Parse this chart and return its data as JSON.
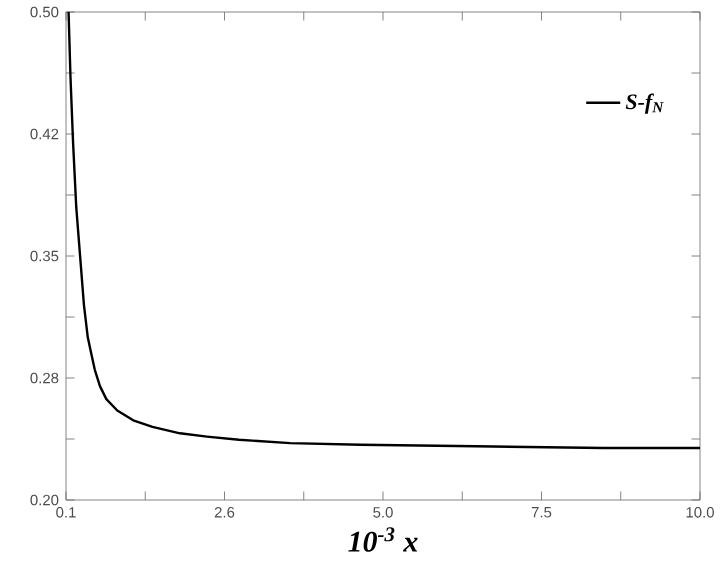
{
  "chart_data": {
    "type": "line",
    "xlabel": "10$^{-3}$ x",
    "x": [
      0.14,
      0.17,
      0.21,
      0.26,
      0.32,
      0.38,
      0.44,
      0.5,
      0.55,
      0.63,
      0.73,
      0.9,
      1.15,
      1.45,
      1.88,
      2.3,
      2.8,
      3.6,
      4.7,
      6.5,
      8.5,
      10.0
    ],
    "series": [
      {
        "name": "S-f$_{N}$",
        "color": "#000000",
        "values": [
          0.5,
          0.46,
          0.42,
          0.38,
          0.35,
          0.32,
          0.3,
          0.289,
          0.28,
          0.27,
          0.262,
          0.255,
          0.249,
          0.245,
          0.241,
          0.239,
          0.237,
          0.235,
          0.234,
          0.233,
          0.232,
          0.232
        ]
      }
    ],
    "xlim": [
      0.1,
      10.0
    ],
    "ylim": [
      0.2,
      0.5
    ],
    "xticks": [
      0.1,
      {
        "value": 1.3375,
        "label": null
      },
      {
        "value": 2.575,
        "label": "2.6"
      },
      {
        "value": 3.8125,
        "label": null
      },
      {
        "value": 5.05,
        "label": "5.0"
      },
      {
        "value": 6.2875,
        "label": null
      },
      {
        "value": 7.525,
        "label": "7.5"
      },
      {
        "value": 8.7625,
        "label": null
      },
      {
        "value": 10.0,
        "label": "10.0"
      }
    ],
    "yticks": [
      {
        "value": 0.2,
        "label": "0.20"
      },
      {
        "value": 0.2375,
        "label": null
      },
      {
        "value": 0.275,
        "label": "0.28"
      },
      {
        "value": 0.3125,
        "label": null
      },
      0.35,
      {
        "value": 0.3875,
        "label": null
      },
      {
        "value": 0.425,
        "label": "0.42"
      },
      {
        "value": 0.4625,
        "label": null
      },
      {
        "value": 0.5,
        "label": "0.50"
      }
    ],
    "legend": "top right",
    "grid": false,
    "marker": "none",
    "line_style": "solid"
  }
}
